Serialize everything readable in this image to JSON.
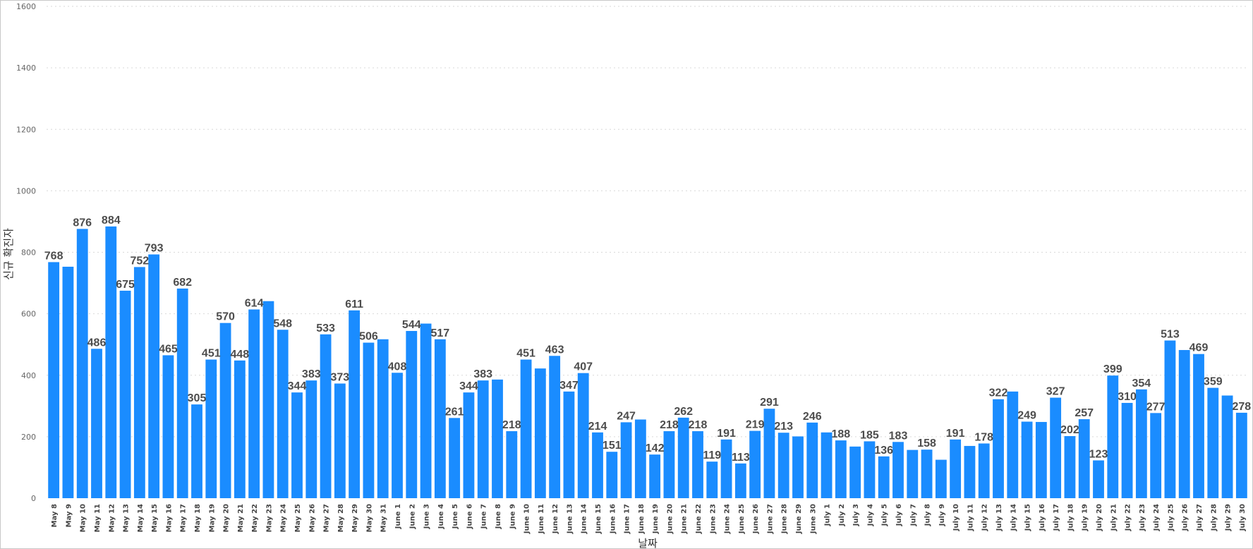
{
  "chart_data": {
    "type": "bar",
    "xlabel": "날짜",
    "ylabel": "신규 확진자",
    "ylim": [
      0,
      1600
    ],
    "yticks": [
      0,
      200,
      400,
      600,
      800,
      1000,
      1200,
      1400,
      1600
    ],
    "grid": true,
    "bar_color": "#1a8cff",
    "categories": [
      "May 8",
      "May 9",
      "May 10",
      "May 11",
      "May 12",
      "May 13",
      "May 14",
      "May 15",
      "May 16",
      "May 17",
      "May 18",
      "May 19",
      "May 20",
      "May 21",
      "May 22",
      "May 23",
      "May 24",
      "May 25",
      "May 26",
      "May 27",
      "May 28",
      "May 29",
      "May 30",
      "May 31",
      "June 1",
      "June 2",
      "June 3",
      "June 4",
      "June 5",
      "June 6",
      "June 7",
      "June 8",
      "June 9",
      "June 10",
      "June 11",
      "June 12",
      "June 13",
      "June 14",
      "June 15",
      "June 16",
      "June 17",
      "June 18",
      "June 19",
      "June 20",
      "June 21",
      "June 22",
      "June 23",
      "June 24",
      "June 25",
      "June 26",
      "June 27",
      "June 28",
      "June 29",
      "June 30",
      "July 1",
      "July 2",
      "July 3",
      "July 4",
      "July 5",
      "July 6",
      "July 7",
      "July 8",
      "July 9",
      "July 10",
      "July 11",
      "July 12",
      "July 13",
      "July 14",
      "July 15",
      "July 16",
      "July 17",
      "July 18",
      "July 19",
      "July 20",
      "July 21",
      "July 22",
      "July 23",
      "July 24",
      "July 25",
      "July 26",
      "July 27",
      "July 28",
      "July 29",
      "July 30"
    ],
    "values": [
      768,
      753,
      876,
      486,
      884,
      675,
      752,
      793,
      465,
      682,
      305,
      451,
      570,
      448,
      614,
      641,
      548,
      344,
      383,
      533,
      373,
      611,
      506,
      517,
      408,
      544,
      568,
      517,
      261,
      344,
      383,
      386,
      218,
      451,
      422,
      463,
      347,
      407,
      214,
      151,
      247,
      256,
      142,
      218,
      262,
      218,
      119,
      191,
      113,
      219,
      291,
      213,
      201,
      246,
      214,
      188,
      168,
      185,
      136,
      183,
      157,
      158,
      125,
      191,
      170,
      178,
      322,
      347,
      249,
      248,
      327,
      202,
      257,
      123,
      399,
      310,
      354,
      277,
      513,
      482,
      469,
      359,
      334,
      278
    ],
    "data_labels": [
      "768",
      "",
      "876",
      "486",
      "884",
      "675",
      "752",
      "793",
      "465",
      "682",
      "305",
      "451",
      "570",
      "448",
      "614",
      "",
      "548",
      "344",
      "383",
      "533",
      "373",
      "611",
      "506",
      "",
      "408",
      "544",
      "",
      "517",
      "261",
      "344",
      "383",
      "",
      "218",
      "451",
      "",
      "463",
      "347",
      "407",
      "214",
      "151",
      "247",
      "",
      "142",
      "218",
      "262",
      "218",
      "119",
      "191",
      "113",
      "219",
      "291",
      "213",
      "",
      "246",
      "",
      "188",
      "",
      "185",
      "136",
      "183",
      "",
      "158",
      "",
      "191",
      "",
      "178",
      "322",
      "",
      "249",
      "",
      "327",
      "202",
      "257",
      "123",
      "399",
      "310",
      "354",
      "277",
      "513",
      "",
      "469",
      "359",
      "",
      "278"
    ]
  }
}
